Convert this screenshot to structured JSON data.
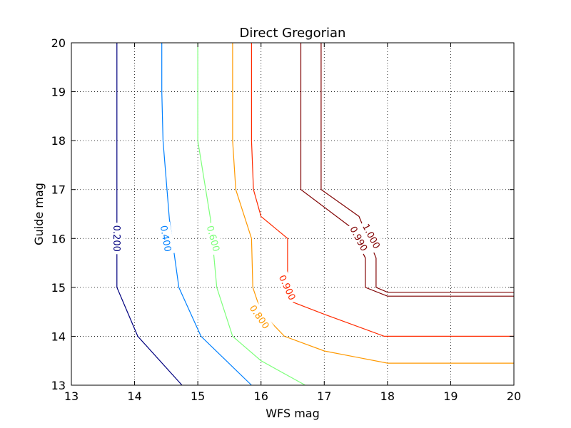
{
  "chart_data": {
    "type": "contour",
    "title": "Direct Gregorian",
    "xlabel": "WFS mag",
    "ylabel": "Guide mag",
    "xlim": [
      13,
      20
    ],
    "ylim": [
      13,
      20
    ],
    "xticks": [
      13,
      14,
      15,
      16,
      17,
      18,
      19,
      20
    ],
    "yticks": [
      13,
      14,
      15,
      16,
      17,
      18,
      19,
      20
    ],
    "grid": true,
    "series": [
      {
        "name": "0.200",
        "level": 0.2,
        "color": "#00007f",
        "x": [
          13.72,
          13.72,
          13.72,
          13.72,
          14.05,
          14.75
        ],
        "y": [
          20,
          18,
          16.4,
          15,
          14,
          13
        ],
        "label_at": [
          13.72,
          16.0
        ],
        "label_angle": 90
      },
      {
        "name": "0.400",
        "level": 0.4,
        "color": "#0080ff",
        "x": [
          14.43,
          14.43,
          14.45,
          14.55,
          14.7,
          15.05,
          15.85
        ],
        "y": [
          20,
          19,
          18,
          16.4,
          15,
          14,
          13
        ],
        "label_at": [
          14.5,
          16.0
        ],
        "label_angle": 80
      },
      {
        "name": "0.600",
        "level": 0.6,
        "color": "#7dff7a",
        "x": [
          15.0,
          15.0,
          15.0,
          15.2,
          15.3,
          15.55,
          16.0,
          16.7
        ],
        "y": [
          20,
          19,
          18,
          16.4,
          15,
          14,
          13.5,
          13
        ],
        "label_at": [
          15.25,
          16.0
        ],
        "label_angle": 75
      },
      {
        "name": "0.800",
        "level": 0.8,
        "color": "#ff9900",
        "x": [
          15.55,
          15.55,
          15.55,
          15.6,
          15.85,
          15.87,
          16.0,
          16.37,
          17.0,
          18.0,
          19.0,
          20.0
        ],
        "y": [
          20,
          19,
          18,
          17,
          16,
          15,
          14.5,
          14,
          13.7,
          13.45,
          13.45,
          13.45
        ],
        "label_at": [
          15.98,
          14.4
        ],
        "label_angle": 55
      },
      {
        "name": "0.900",
        "level": 0.9,
        "color": "#ff2a00",
        "x": [
          15.85,
          15.85,
          15.85,
          15.88,
          16.0,
          16.42,
          16.42,
          16.5,
          17.0,
          17.95,
          18.0,
          19.0,
          20.0
        ],
        "y": [
          20,
          19,
          18,
          17,
          16.45,
          16,
          15.3,
          14.7,
          14.45,
          14.0,
          14.0,
          14.0,
          14.0
        ],
        "label_at": [
          16.42,
          15.0
        ],
        "label_angle": 65
      },
      {
        "name": "0.990",
        "level": 0.99,
        "color": "#7f0000",
        "x": [
          16.63,
          16.63,
          16.63,
          17.4,
          17.65,
          17.65,
          18.0,
          19.0,
          20.0
        ],
        "y": [
          20,
          19,
          17,
          16.25,
          15.6,
          15.0,
          14.82,
          14.82,
          14.82
        ],
        "label_at": [
          17.55,
          16.0
        ],
        "label_angle": 62
      },
      {
        "name": "1.000",
        "level": 1.0,
        "color": "#7f0000",
        "x": [
          16.95,
          16.95,
          16.95,
          17.55,
          17.82,
          17.82,
          18.0,
          19.0,
          20.0
        ],
        "y": [
          20,
          19,
          17,
          16.45,
          15.6,
          15.0,
          14.9,
          14.9,
          14.9
        ],
        "label_at": [
          17.75,
          16.05
        ],
        "label_angle": 62
      }
    ]
  }
}
